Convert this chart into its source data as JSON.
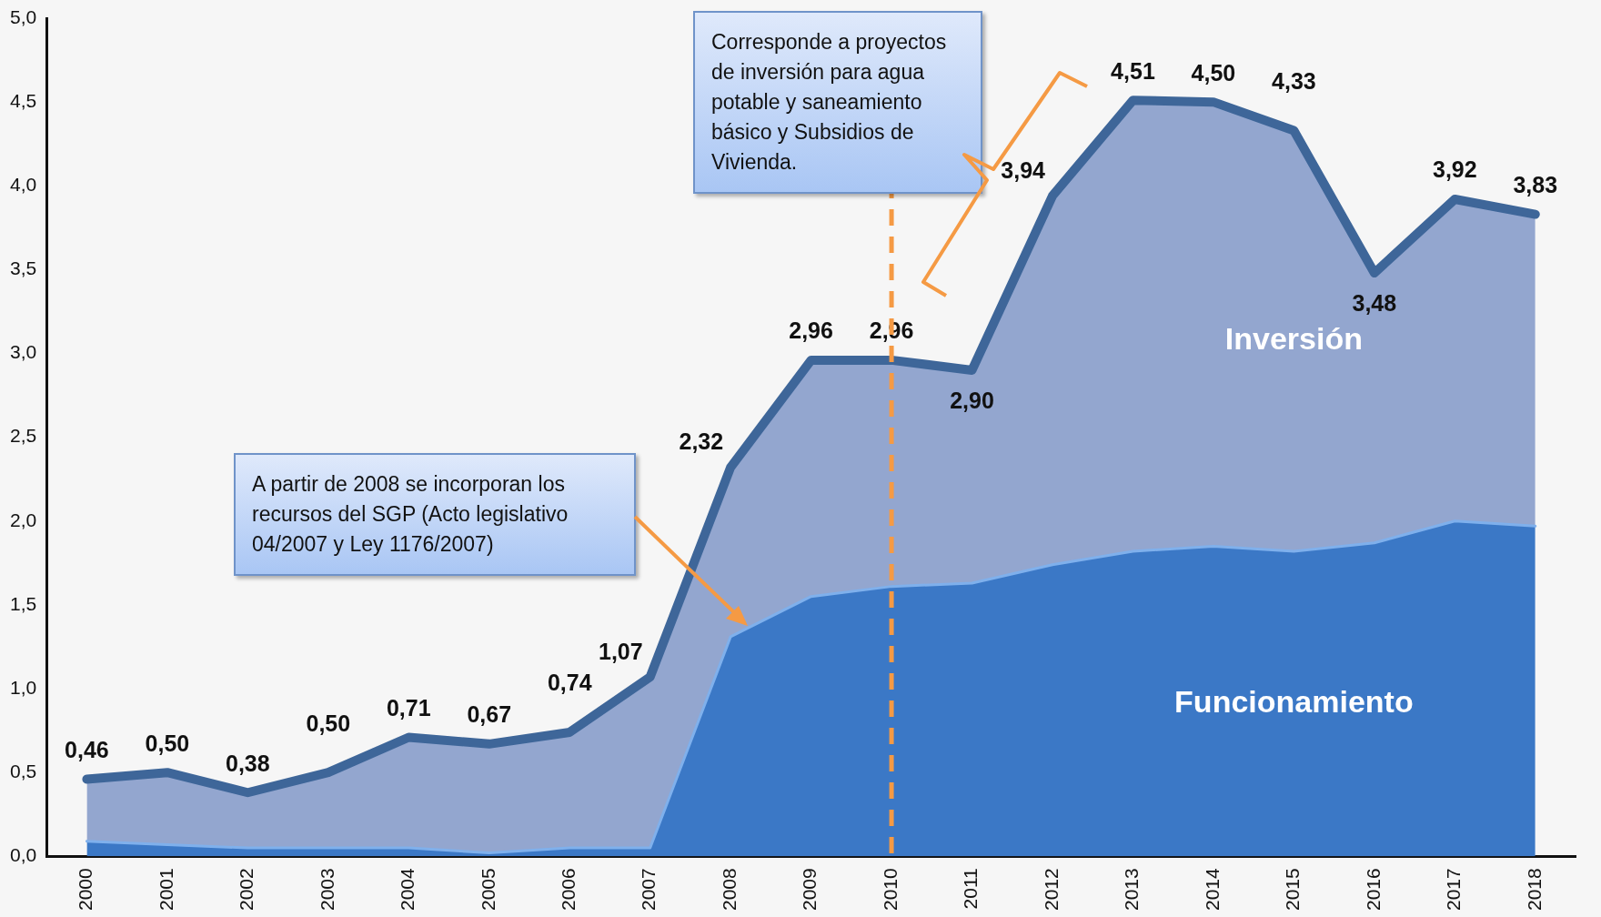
{
  "chart_data": {
    "type": "area",
    "stacked": true,
    "legend": false,
    "grid": false,
    "categories": [
      "2000",
      "2001",
      "2002",
      "2003",
      "2004",
      "2005",
      "2006",
      "2007",
      "2008",
      "2009",
      "2010",
      "2011",
      "2012",
      "2013",
      "2014",
      "2015",
      "2016",
      "2017",
      "2018"
    ],
    "series": [
      {
        "name": "Funcionamiento",
        "color": "#3b78c6",
        "values": [
          0.09,
          0.07,
          0.05,
          0.05,
          0.05,
          0.02,
          0.05,
          0.05,
          1.31,
          1.55,
          1.61,
          1.63,
          1.74,
          1.82,
          1.85,
          1.82,
          1.87,
          2.0,
          1.97
        ]
      },
      {
        "name": "Inversión",
        "color": "#93a6cf",
        "values": [
          0.37,
          0.43,
          0.33,
          0.45,
          0.66,
          0.65,
          0.69,
          1.02,
          1.01,
          1.41,
          1.35,
          1.27,
          2.2,
          2.69,
          2.65,
          2.51,
          1.61,
          1.92,
          1.86
        ]
      }
    ],
    "totals": [
      "0,46",
      "0,50",
      "0,38",
      "0,50",
      "0,71",
      "0,67",
      "0,74",
      "1,07",
      "2,32",
      "2,96",
      "2,96",
      "2,90",
      "3,94",
      "4,51",
      "4,50",
      "4,33",
      "3,48",
      "3,92",
      "3,83"
    ],
    "ylim": [
      0,
      5
    ],
    "yticks": [
      {
        "value": 0,
        "label": "0,0"
      },
      {
        "value": 0.5,
        "label": "0,5"
      },
      {
        "value": 1,
        "label": "1,0"
      },
      {
        "value": 1.5,
        "label": "1,5"
      },
      {
        "value": 2,
        "label": "2,0"
      },
      {
        "value": 2.5,
        "label": "2,5"
      },
      {
        "value": 3,
        "label": "3,0"
      },
      {
        "value": 3.5,
        "label": "3,5"
      },
      {
        "value": 4,
        "label": "4,0"
      },
      {
        "value": 4.5,
        "label": "4,5"
      },
      {
        "value": 5,
        "label": "5,0"
      }
    ],
    "ref_lines": [
      {
        "axis": "x",
        "value": "2010",
        "color": "#f59a44",
        "line_style": "dashed"
      }
    ],
    "annotations": [
      "A partir de 2008 se incorporan los recursos del SGP (Acto legislativo 04/2007 y Ley 1176/2007)",
      "Corresponde a proyectos de inversión para agua potable y saneamiento básico y Subsidios de Vivienda."
    ]
  }
}
